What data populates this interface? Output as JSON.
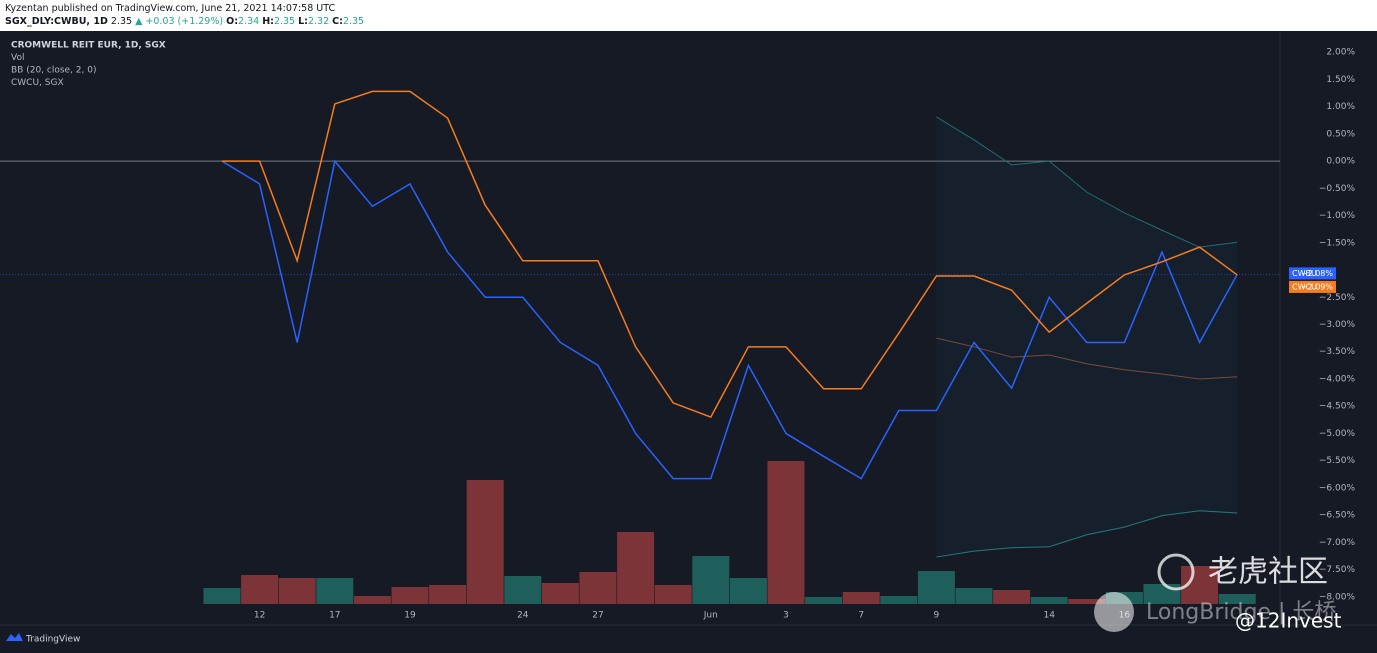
{
  "header": {
    "publisher": "Kyzentan published on TradingView.com, June 21, 2021 14:07:58 UTC",
    "symbol": "SGX_DLY:CWBU, 1D",
    "last": "2.35",
    "change": "▲ +0.03 (+1.29%)",
    "o_label": "O:",
    "o": "2.34",
    "h_label": "H:",
    "h": "2.35",
    "l_label": "L:",
    "l": "2.32",
    "c_label": "C:",
    "c": "2.35"
  },
  "chart_data": {
    "type": "line",
    "legend_lines": [
      "CROMWELL REIT EUR, 1D, SGX",
      "Vol",
      "BB (20, close, 2, 0)",
      "CWCU, SGX"
    ],
    "categories": [
      null,
      "12",
      null,
      "17",
      null,
      "19",
      null,
      null,
      "24",
      null,
      "27",
      null,
      null,
      "Jun",
      null,
      "3",
      null,
      "7",
      null,
      "9",
      null,
      null,
      "14",
      null,
      "16",
      null,
      null,
      null
    ],
    "series": [
      {
        "name": "CWBU",
        "color": "#2962ff",
        "values": [
          0,
          -0.42,
          -3.33,
          0,
          -0.83,
          -0.42,
          -1.67,
          -2.5,
          -2.5,
          -3.33,
          -3.75,
          -5.0,
          -5.83,
          -5.83,
          -3.75,
          -5.0,
          -5.42,
          -5.83,
          -4.58,
          -4.58,
          -3.33,
          -4.17,
          -2.5,
          -3.33,
          -3.33,
          -1.67,
          -3.33,
          -2.08
        ],
        "value_labels": [
          null,
          null,
          null,
          null,
          null,
          null,
          null,
          null,
          null,
          null,
          null,
          null,
          null,
          null,
          null,
          null,
          null,
          null,
          null,
          null,
          null,
          null,
          null,
          null,
          null,
          null,
          null,
          "−2.08%"
        ]
      },
      {
        "name": "CWCU",
        "color": "#f57c1f",
        "values": [
          0,
          0,
          -1.83,
          1.05,
          1.28,
          1.28,
          0.79,
          -0.81,
          -1.83,
          -1.83,
          -1.83,
          -3.41,
          -4.44,
          -4.7,
          -3.41,
          -3.41,
          -4.18,
          -4.18,
          -3.16,
          -2.11,
          -2.11,
          -2.37,
          -3.14,
          -2.61,
          -2.09,
          -1.85,
          -1.58,
          -2.09
        ],
        "value_labels": [
          null,
          null,
          null,
          null,
          null,
          null,
          null,
          null,
          null,
          null,
          null,
          null,
          null,
          null,
          null,
          null,
          null,
          null,
          null,
          null,
          null,
          null,
          null,
          null,
          null,
          null,
          null,
          "−2.09%"
        ]
      }
    ],
    "bollinger": {
      "upper_color": "#1e6f73",
      "basis_color": "#7a4a3a",
      "lower_color": "#1e7c80",
      "fill": "rgba(30,120,125,0.08)",
      "upper": [
        null,
        null,
        null,
        null,
        null,
        null,
        null,
        null,
        null,
        null,
        null,
        null,
        null,
        null,
        null,
        null,
        null,
        null,
        null,
        0.81,
        0.39,
        -0.07,
        0,
        -0.57,
        -0.95,
        -1.27,
        -1.58,
        -1.49
      ],
      "basis": [
        null,
        null,
        null,
        null,
        null,
        null,
        null,
        null,
        null,
        null,
        null,
        null,
        null,
        null,
        null,
        null,
        null,
        null,
        null,
        -3.25,
        -3.41,
        -3.6,
        -3.56,
        -3.72,
        -3.83,
        -3.91,
        -4.0,
        -3.96
      ],
      "lower": [
        null,
        null,
        null,
        null,
        null,
        null,
        null,
        null,
        null,
        null,
        null,
        null,
        null,
        null,
        null,
        null,
        null,
        null,
        null,
        -7.27,
        -7.16,
        -7.1,
        -7.08,
        -6.86,
        -6.72,
        -6.51,
        -6.42,
        -6.46
      ]
    },
    "volume": {
      "values": [
        16,
        29,
        26,
        26,
        8,
        17,
        19,
        124,
        28,
        21,
        32,
        72,
        19,
        48,
        26,
        143,
        7,
        12,
        8,
        33,
        16,
        14,
        7,
        5,
        12,
        20,
        38,
        10
      ],
      "colors": [
        "#1f5f5b",
        "#7d3438",
        "#7d3438",
        "#1f5f5b",
        "#7d3438",
        "#7d3438",
        "#7d3438",
        "#7d3438",
        "#1f5f5b",
        "#7d3438",
        "#7d3438",
        "#7d3438",
        "#7d3438",
        "#1f5f5b",
        "#1f5f5b",
        "#7d3438",
        "#1f5f5b",
        "#7d3438",
        "#1f5f5b",
        "#1f5f5b",
        "#1f5f5b",
        "#7d3438",
        "#1f5f5b",
        "#7d3438",
        "#1f5f5b",
        "#1f5f5b",
        "#7d3438",
        "#1f5f5b"
      ]
    },
    "ylim": [
      -8.15,
      2.37
    ],
    "yticks": [
      {
        "value": 2,
        "label": "2.00%"
      },
      {
        "value": 1.5,
        "label": "1.50%"
      },
      {
        "value": 1,
        "label": "1.00%"
      },
      {
        "value": 0.5,
        "label": "0.50%"
      },
      {
        "value": 0,
        "label": "0.00%"
      },
      {
        "value": -0.5,
        "label": "−0.50%"
      },
      {
        "value": -1,
        "label": "−1.00%"
      },
      {
        "value": -1.5,
        "label": "−1.50%"
      },
      {
        "value": -2.5,
        "label": "−2.50%"
      },
      {
        "value": -3,
        "label": "−3.00%"
      },
      {
        "value": -3.5,
        "label": "−3.50%"
      },
      {
        "value": -4,
        "label": "−4.00%"
      },
      {
        "value": -4.5,
        "label": "−4.50%"
      },
      {
        "value": -5,
        "label": "−5.00%"
      },
      {
        "value": -5.5,
        "label": "−5.50%"
      },
      {
        "value": -6,
        "label": "−6.00%"
      },
      {
        "value": -6.5,
        "label": "−6.50%"
      },
      {
        "value": -7,
        "label": "−7.00%"
      },
      {
        "value": -7.5,
        "label": "−7.50%"
      },
      {
        "value": -8,
        "label": "−8.00%"
      }
    ],
    "grid": false
  },
  "footer": {
    "brand": "TradingView"
  },
  "watermark": {
    "community": "老虎社区",
    "brand": "LongBridge | 长桥",
    "handle": "@12Invest"
  }
}
